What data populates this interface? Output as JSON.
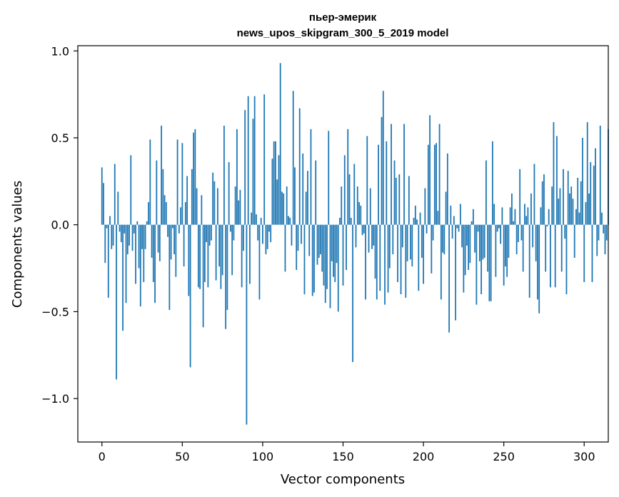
{
  "chart_data": {
    "type": "bar",
    "title_line1": "пьер-эмерик",
    "title_line2": "news_upos_skipgram_300_5_2019 model",
    "xlabel": "Vector components",
    "ylabel": "Components values",
    "xlim": [
      -15,
      315
    ],
    "ylim": [
      -1.25,
      1.03
    ],
    "xticks": [
      0,
      50,
      100,
      150,
      200,
      250,
      300
    ],
    "yticks": [
      -1.0,
      -0.5,
      0.0,
      0.5,
      1.0
    ],
    "ytick_labels": [
      "−1.0",
      "−0.5",
      "0.0",
      "0.5",
      "1.0"
    ],
    "grid": false,
    "bar_color": "#1f77b4",
    "values": [
      0.33,
      0.24,
      -0.22,
      -0.02,
      -0.42,
      0.05,
      -0.14,
      -0.12,
      0.35,
      -0.89,
      0.19,
      -0.04,
      -0.1,
      -0.61,
      -0.05,
      -0.45,
      -0.17,
      -0.12,
      0.4,
      -0.15,
      -0.05,
      -0.34,
      0.02,
      -0.25,
      -0.47,
      -0.14,
      -0.33,
      -0.14,
      0.02,
      0.13,
      0.49,
      -0.19,
      -0.33,
      -0.45,
      0.37,
      -0.16,
      -0.21,
      0.57,
      0.32,
      0.17,
      0.13,
      -0.07,
      -0.49,
      -0.2,
      -0.02,
      -0.17,
      -0.3,
      0.49,
      -0.05,
      0.1,
      0.47,
      -0.24,
      0.13,
      0.28,
      -0.41,
      -0.82,
      0.32,
      0.53,
      0.55,
      0.21,
      -0.36,
      -0.37,
      0.17,
      -0.59,
      -0.33,
      -0.1,
      -0.36,
      -0.12,
      -0.09,
      0.3,
      0.25,
      -0.32,
      0.21,
      -0.24,
      -0.37,
      -0.29,
      0.57,
      -0.6,
      -0.49,
      0.36,
      -0.04,
      -0.29,
      -0.09,
      0.22,
      0.55,
      0.14,
      0.2,
      -0.36,
      -0.15,
      0.66,
      -1.15,
      0.74,
      -0.34,
      0.07,
      0.61,
      0.74,
      0.06,
      -0.09,
      -0.43,
      0.04,
      -0.11,
      0.75,
      -0.17,
      -0.14,
      -0.04,
      -0.1,
      0.38,
      0.48,
      0.48,
      0.26,
      0.4,
      0.93,
      0.19,
      0.18,
      -0.27,
      0.22,
      0.05,
      0.04,
      -0.12,
      0.77,
      0.33,
      -0.26,
      -0.15,
      0.67,
      -0.11,
      0.41,
      -0.4,
      0.19,
      0.31,
      -0.18,
      0.55,
      -0.41,
      -0.39,
      0.37,
      -0.23,
      -0.19,
      -0.17,
      -0.27,
      -0.35,
      -0.45,
      -0.37,
      0.54,
      -0.48,
      -0.21,
      -0.3,
      -0.33,
      -0.22,
      -0.5,
      0.04,
      0.22,
      -0.35,
      0.4,
      -0.26,
      0.55,
      0.29,
      0.04,
      -0.79,
      0.35,
      -0.13,
      0.22,
      0.13,
      0.11,
      -0.06,
      -0.05,
      -0.43,
      0.51,
      -0.16,
      0.21,
      -0.14,
      -0.12,
      -0.31,
      -0.43,
      0.46,
      -0.38,
      0.62,
      0.77,
      -0.46,
      0.48,
      -0.39,
      -0.25,
      0.58,
      -0.17,
      0.37,
      0.27,
      -0.33,
      0.29,
      -0.4,
      -0.13,
      0.58,
      -0.42,
      -0.21,
      0.28,
      -0.2,
      -0.24,
      0.04,
      0.11,
      0.03,
      -0.38,
      0.07,
      -0.19,
      -0.34,
      0.21,
      -0.05,
      0.46,
      0.63,
      -0.28,
      -0.09,
      0.46,
      0.47,
      0.08,
      0.58,
      -0.43,
      -0.16,
      -0.17,
      0.19,
      0.41,
      -0.62,
      0.11,
      -0.08,
      0.05,
      -0.55,
      -0.02,
      -0.04,
      0.12,
      -0.13,
      -0.39,
      -0.29,
      -0.12,
      -0.26,
      -0.22,
      0.02,
      0.09,
      -0.16,
      -0.46,
      -0.04,
      -0.21,
      -0.4,
      -0.2,
      -0.19,
      0.37,
      -0.27,
      -0.44,
      -0.44,
      0.48,
      0.12,
      -0.3,
      -0.04,
      -0.02,
      -0.11,
      0.1,
      -0.35,
      -0.24,
      -0.3,
      -0.19,
      0.1,
      0.18,
      0.02,
      0.09,
      -0.17,
      -0.1,
      0.32,
      -0.09,
      -0.27,
      0.12,
      0.05,
      0.1,
      -0.42,
      0.18,
      -0.13,
      0.35,
      -0.21,
      -0.43,
      -0.51,
      0.1,
      0.25,
      0.29,
      -0.27,
      -0.01,
      0.09,
      -0.36,
      0.22,
      0.59,
      -0.36,
      0.51,
      0.15,
      0.21,
      -0.27,
      0.32,
      -0.08,
      -0.4,
      0.31,
      0.18,
      0.22,
      0.15,
      -0.19,
      0.09,
      0.27,
      0.07,
      0.25,
      0.5,
      -0.33,
      0.13,
      0.59,
      0.18,
      0.36,
      -0.33,
      0.34,
      0.44,
      -0.18,
      -0.09,
      0.57,
      0.07,
      -0.05,
      -0.17,
      -0.09,
      0.55
    ]
  }
}
